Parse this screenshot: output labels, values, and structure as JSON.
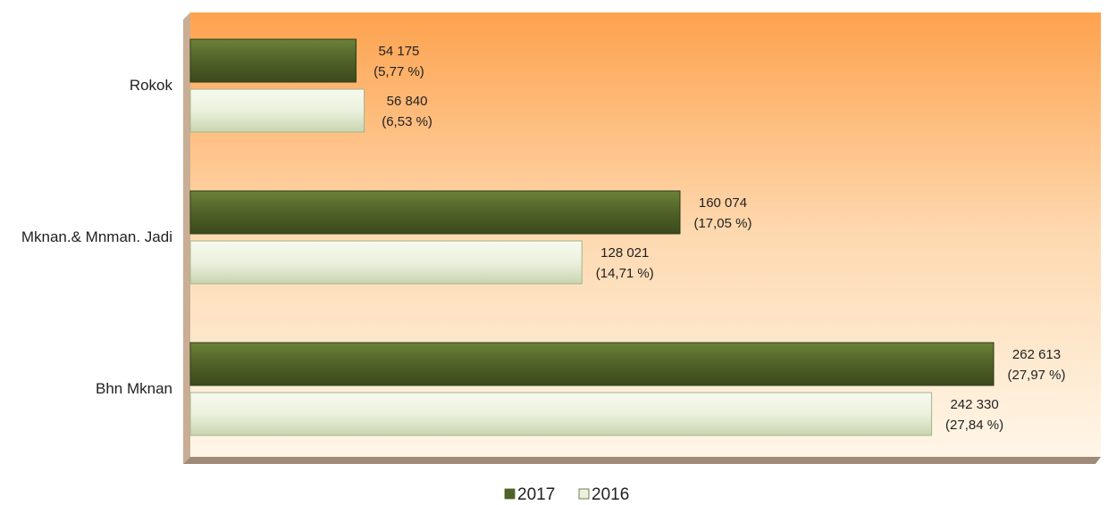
{
  "chart_data": {
    "type": "bar",
    "orientation": "horizontal",
    "categories": [
      "Rokok",
      "Mknan.& Mnman. Jadi",
      "Bhn Mknan"
    ],
    "series": [
      {
        "name": "2017",
        "color": "#4f6228",
        "values": [
          54175,
          160074,
          262613
        ],
        "value_labels": [
          "54 175",
          "160 074",
          "262 613"
        ],
        "share_labels": [
          "(5,77 %)",
          "(17,05 %)",
          "(27,97 %)"
        ]
      },
      {
        "name": "2016",
        "color": "#ebf1de",
        "values": [
          56840,
          128021,
          242330
        ],
        "value_labels": [
          "56 840",
          "128 021",
          "242 330"
        ],
        "share_labels": [
          "(6,53 %)",
          "(14,71 %)",
          "(27,84 %)"
        ]
      }
    ],
    "xlim": [
      0,
      300000
    ],
    "legend": "bottom"
  }
}
